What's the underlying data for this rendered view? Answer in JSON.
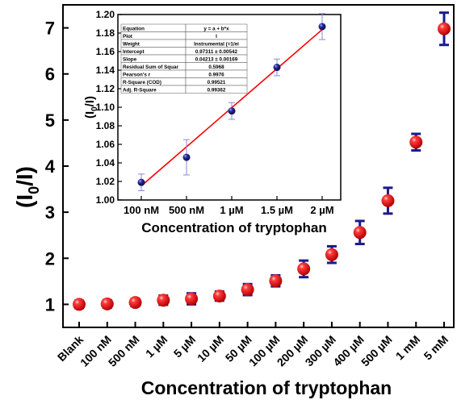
{
  "main_chart": {
    "type": "scatter",
    "title": "",
    "xlabel": "Concentration of tryptophan",
    "ylabel_main": "(I",
    "ylabel_sub": "0",
    "ylabel_tail": "/I)",
    "categories": [
      "Blank",
      "100 nM",
      "500 nM",
      "1 µM",
      "5 µM",
      "10 µM",
      "50 µM",
      "100 µM",
      "200 µM",
      "300 µM",
      "400 µM",
      "500 µM",
      "1 mM",
      "5 mM"
    ],
    "values": [
      1.0,
      1.01,
      1.04,
      1.09,
      1.12,
      1.18,
      1.32,
      1.51,
      1.77,
      2.08,
      2.56,
      3.25,
      4.52,
      6.98
    ],
    "errors": [
      0.08,
      0.08,
      0.08,
      0.1,
      0.12,
      0.1,
      0.12,
      0.12,
      0.18,
      0.18,
      0.25,
      0.28,
      0.18,
      0.35
    ],
    "ylim": [
      0.5,
      7.5
    ],
    "yticks": [
      1,
      2,
      3,
      4,
      5,
      6,
      7
    ],
    "marker_color": "#ff1a1a",
    "errorbar_color": "#1a1a8c"
  },
  "inset_chart": {
    "type": "scatter",
    "xlabel": "Concentration of tryptophan",
    "ylabel_main": "(I",
    "ylabel_sub": "0",
    "ylabel_tail": "/I)",
    "categories": [
      "100 nM",
      "500 nM",
      "1 µM",
      "1.5 µM",
      "2 µM"
    ],
    "values": [
      1.019,
      1.046,
      1.096,
      1.143,
      1.187
    ],
    "errors": [
      0.009,
      0.019,
      0.009,
      0.009,
      0.014
    ],
    "ylim": [
      1.0,
      1.2
    ],
    "yticks": [
      "1.00",
      "1.02",
      "1.04",
      "1.06",
      "1.08",
      "1.10",
      "1.12",
      "1.14",
      "1.16",
      "1.18",
      "1.20"
    ],
    "fit": {
      "intercept": 0.97311,
      "slope": 0.04213
    },
    "marker_color": "#1c1c8a",
    "fit_color": "#ff0000"
  },
  "fit_table": [
    [
      "Equation",
      "y = a + b*x"
    ],
    [
      "Plot",
      "I"
    ],
    [
      "Weight",
      "Instrumental (=1/ei"
    ],
    [
      "Intercept",
      "0.97311 ± 0.00542"
    ],
    [
      "Slope",
      "0.04213 ± 0.00169"
    ],
    [
      "Residual Sum of Squar",
      "0.5968"
    ],
    [
      "Pearson's r",
      "0.9976"
    ],
    [
      "R-Square (COD)",
      "0.99521"
    ],
    [
      "Adj. R-Square",
      "0.99362"
    ]
  ]
}
